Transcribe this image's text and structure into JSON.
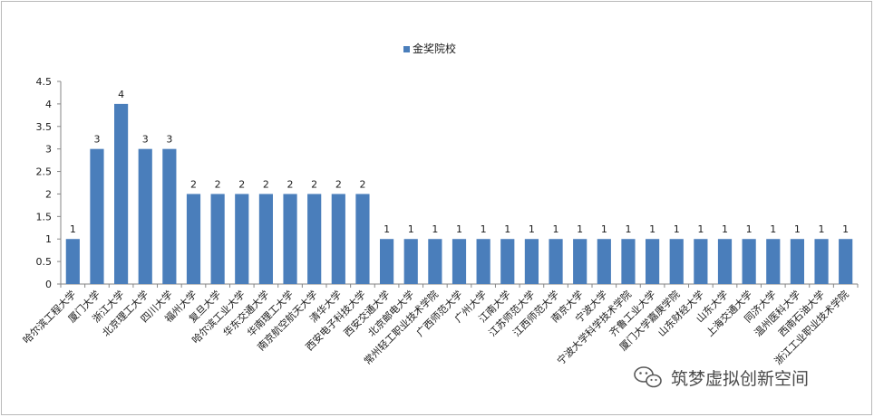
{
  "chart_data": {
    "type": "bar",
    "legend": {
      "position": "top",
      "entries": [
        "金奖院校"
      ]
    },
    "series": [
      {
        "name": "金奖院校",
        "color": "#4a7ebb",
        "values": [
          1,
          3,
          4,
          3,
          3,
          2,
          2,
          2,
          2,
          2,
          2,
          2,
          2,
          1,
          1,
          1,
          1,
          1,
          1,
          1,
          1,
          1,
          1,
          1,
          1,
          1,
          1,
          1,
          1,
          1,
          1,
          1,
          1
        ]
      }
    ],
    "categories": [
      "哈尔滨工程大学",
      "厦门大学",
      "浙江大学",
      "北京理工大学",
      "四川大学",
      "福州大学",
      "复旦大学",
      "哈尔滨工业大学",
      "华东交通大学",
      "华南理工大学",
      "南京航空航天大学",
      "清华大学",
      "西安电子科技大学",
      "西安交通大学",
      "北京邮电大学",
      "常州轻工职业技术学院",
      "广西师范大学",
      "广州大学",
      "江南大学",
      "江苏师范大学",
      "江西师范大学",
      "南京大学",
      "宁波大学",
      "宁波大学科学技术学院",
      "齐鲁工业大学",
      "厦门大学嘉庚学院",
      "山东财经大学",
      "山东大学",
      "上海交通大学",
      "同济大学",
      "温州医科大学",
      "西南石油大学",
      "浙江工业职业技术学院"
    ],
    "ylim": [
      0,
      4.5
    ],
    "yticks": [
      "0",
      "0.5",
      "1",
      "1.5",
      "2",
      "2.5",
      "3",
      "3.5",
      "4",
      "4.5"
    ],
    "grid": false,
    "data_labels": true
  },
  "watermark": {
    "text": "筑梦虚拟创新空间",
    "icon": "wechat-icon"
  }
}
